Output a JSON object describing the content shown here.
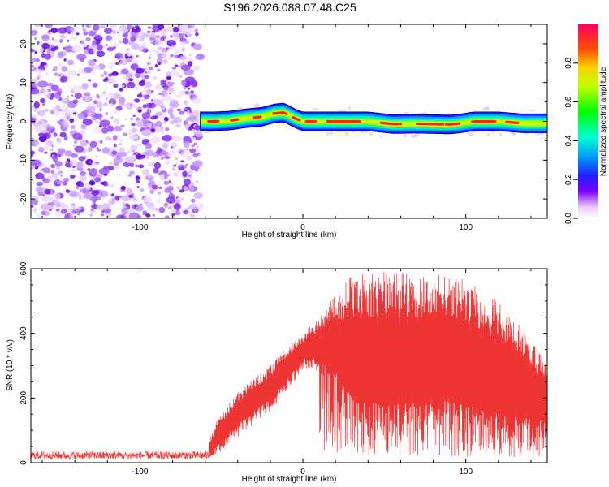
{
  "title": "S196.2026.088.07.48.C25",
  "chart_data": [
    {
      "type": "heatmap",
      "xlabel": "Height of straight line (km)",
      "ylabel": "Frequency (Hz)",
      "xlim": [
        -167,
        150
      ],
      "ylim": [
        -25,
        25
      ],
      "xticks": [
        -100,
        0,
        100
      ],
      "yticks": [
        -20,
        -10,
        0,
        10,
        20
      ],
      "noise_region_x": [
        -167,
        -63
      ],
      "signal_ridge": {
        "x": [
          -63,
          -55,
          -45,
          -35,
          -25,
          -18,
          -12,
          -8,
          -4,
          0,
          10,
          20,
          40,
          55,
          70,
          90,
          97,
          105,
          120,
          135,
          150
        ],
        "freq": [
          0,
          0,
          0.2,
          0.8,
          1.2,
          2,
          2.3,
          1.5,
          0.6,
          0,
          0,
          0,
          0,
          -0.7,
          -0.6,
          -0.8,
          -0.5,
          0,
          0,
          -0.5,
          -0.5
        ]
      },
      "colorbar": {
        "label": "Normalized spectral amplitude",
        "range": [
          0,
          1
        ],
        "ticks": [
          0.0,
          0.2,
          0.4,
          0.6,
          0.8
        ],
        "tick_labels": [
          "0.0",
          "0.2",
          "0.4",
          "0.6",
          "0.8"
        ]
      }
    },
    {
      "type": "line",
      "xlabel": "Height of straight line (km)",
      "ylabel": "SNR (10 * v/v)",
      "xlim": [
        -167,
        150
      ],
      "ylim": [
        0,
        600
      ],
      "xticks": [
        -100,
        0,
        100
      ],
      "yticks": [
        0,
        200,
        400,
        600
      ],
      "color": "#ee3333",
      "envelope": {
        "x": [
          -167,
          -60,
          -52,
          -40,
          -20,
          -10,
          0,
          10,
          20,
          30,
          50,
          80,
          100,
          120,
          135,
          150
        ],
        "base": [
          18,
          18,
          60,
          120,
          200,
          260,
          320,
          330,
          300,
          200,
          180,
          200,
          180,
          150,
          140,
          130
        ],
        "upper": [
          35,
          35,
          140,
          220,
          300,
          360,
          400,
          450,
          520,
          580,
          590,
          585,
          570,
          500,
          420,
          300
        ]
      }
    }
  ]
}
